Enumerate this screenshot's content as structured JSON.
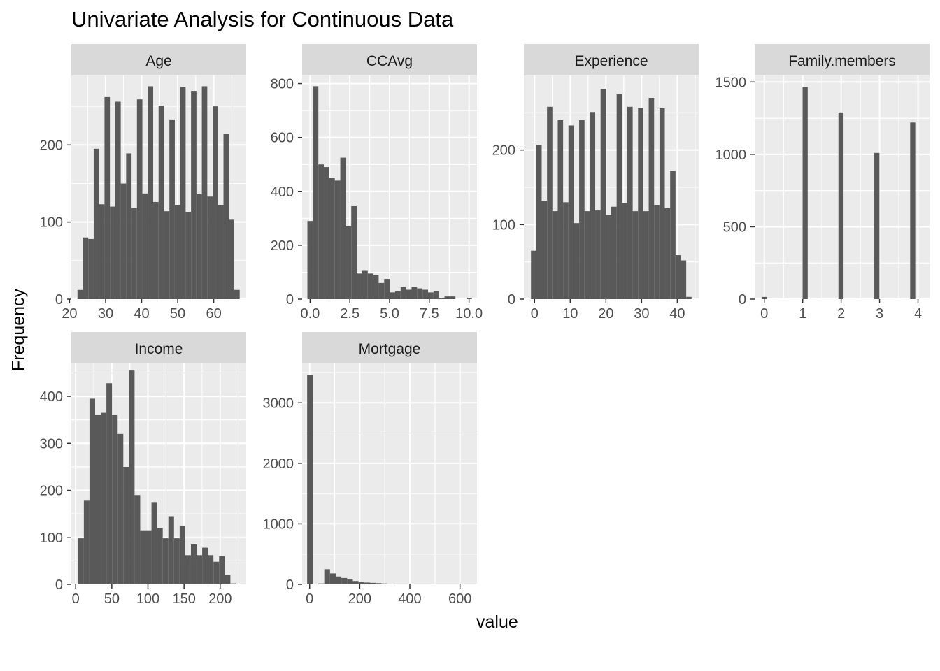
{
  "title": "Univariate Analysis for Continuous Data",
  "xlabel": "value",
  "ylabel": "Frequency",
  "colors": {
    "bar": "#595959",
    "panel": "#ebebeb",
    "strip": "#d9d9d9",
    "grid": "#ffffff",
    "tick_text": "#4d4d4d"
  },
  "chart_data": [
    {
      "type": "bar",
      "facet": "Age",
      "xlim": [
        20.5,
        69
      ],
      "ylim": [
        0,
        290
      ],
      "xticks": [
        20,
        30,
        40,
        50,
        60
      ],
      "xtick_labels": [
        "20",
        "30",
        "40",
        "50",
        "60"
      ],
      "yticks": [
        0,
        100,
        200
      ],
      "ytick_labels": [
        "0",
        "100",
        "200"
      ],
      "bin_start": 22.2,
      "bin_width": 1.5,
      "values": [
        12,
        80,
        78,
        195,
        123,
        262,
        120,
        256,
        150,
        189,
        118,
        259,
        137,
        276,
        126,
        251,
        114,
        233,
        122,
        275,
        113,
        270,
        136,
        276,
        133,
        250,
        122,
        214,
        103,
        12
      ]
    },
    {
      "type": "bar",
      "facet": "CCAvg",
      "xlim": [
        -0.5,
        10.5
      ],
      "ylim": [
        0,
        830
      ],
      "xticks": [
        0,
        2.5,
        5,
        7.5,
        10
      ],
      "xtick_labels": [
        "0.0",
        "2.5",
        "5.0",
        "7.5",
        "10.0"
      ],
      "yticks": [
        0,
        200,
        400,
        600,
        800
      ],
      "ytick_labels": [
        "0",
        "200",
        "400",
        "600",
        "800"
      ],
      "bin_start": -0.17,
      "bin_width": 0.345,
      "values": [
        290,
        790,
        500,
        490,
        450,
        440,
        525,
        270,
        345,
        95,
        105,
        95,
        90,
        60,
        75,
        25,
        30,
        45,
        35,
        45,
        40,
        35,
        25,
        30,
        5,
        10,
        10,
        0,
        0,
        5
      ]
    },
    {
      "type": "bar",
      "facet": "Experience",
      "xlim": [
        -3,
        46
      ],
      "ylim": [
        0,
        300
      ],
      "xticks": [
        0,
        10,
        20,
        30,
        40
      ],
      "xtick_labels": [
        "0",
        "10",
        "20",
        "30",
        "40"
      ],
      "yticks": [
        0,
        100,
        200
      ],
      "ytick_labels": [
        "0",
        "100",
        "200"
      ],
      "bin_start": -1.0,
      "bin_width": 1.5,
      "values": [
        65,
        207,
        132,
        258,
        118,
        240,
        130,
        233,
        102,
        240,
        118,
        251,
        119,
        282,
        113,
        124,
        275,
        129,
        258,
        118,
        256,
        118,
        270,
        126,
        256,
        122,
        172,
        59,
        52,
        3
      ]
    },
    {
      "type": "bar",
      "facet": "Family.members",
      "xlim": [
        -0.25,
        4.3
      ],
      "ylim": [
        0,
        1545
      ],
      "xticks": [
        0,
        1,
        2,
        3,
        4
      ],
      "xtick_labels": [
        "0",
        "1",
        "2",
        "3",
        "4"
      ],
      "yticks": [
        0,
        500,
        1000,
        1500
      ],
      "ytick_labels": [
        "0",
        "500",
        "1000",
        "1500"
      ],
      "bin_start": -0.07,
      "bin_width": 0.1333,
      "values": [
        15,
        0,
        0,
        0,
        0,
        0,
        0,
        0,
        1465,
        0,
        0,
        0,
        0,
        0,
        0,
        1290,
        0,
        0,
        0,
        0,
        0,
        0,
        1010,
        0,
        0,
        0,
        0,
        0,
        0,
        1220
      ]
    },
    {
      "type": "bar",
      "facet": "Income",
      "xlim": [
        -6,
        236
      ],
      "ylim": [
        0,
        470
      ],
      "xticks": [
        0,
        50,
        100,
        150,
        200
      ],
      "xtick_labels": [
        "0",
        "50",
        "100",
        "150",
        "200"
      ],
      "yticks": [
        0,
        100,
        200,
        300,
        400
      ],
      "ytick_labels": [
        "0",
        "100",
        "200",
        "300",
        "400"
      ],
      "bin_start": 3.5,
      "bin_width": 7.8,
      "values": [
        98,
        178,
        395,
        360,
        365,
        428,
        360,
        320,
        250,
        455,
        190,
        115,
        115,
        175,
        120,
        98,
        145,
        98,
        125,
        62,
        85,
        62,
        78,
        62,
        48,
        60,
        20,
        2,
        0,
        0
      ]
    },
    {
      "type": "bar",
      "facet": "Mortgage",
      "xlim": [
        -30,
        668
      ],
      "ylim": [
        0,
        3650
      ],
      "xticks": [
        0,
        200,
        400,
        600
      ],
      "xtick_labels": [
        "0",
        "200",
        "400",
        "600"
      ],
      "yticks": [
        0,
        1000,
        2000,
        3000
      ],
      "ytick_labels": [
        "0",
        "1000",
        "2000",
        "3000"
      ],
      "bin_start": -10,
      "bin_width": 22.8,
      "values": [
        3465,
        0,
        15,
        250,
        180,
        130,
        105,
        80,
        55,
        45,
        30,
        25,
        20,
        15,
        10,
        0,
        0,
        0,
        0,
        0,
        0,
        0,
        0,
        0,
        0,
        0,
        0,
        0,
        0,
        0
      ]
    }
  ]
}
